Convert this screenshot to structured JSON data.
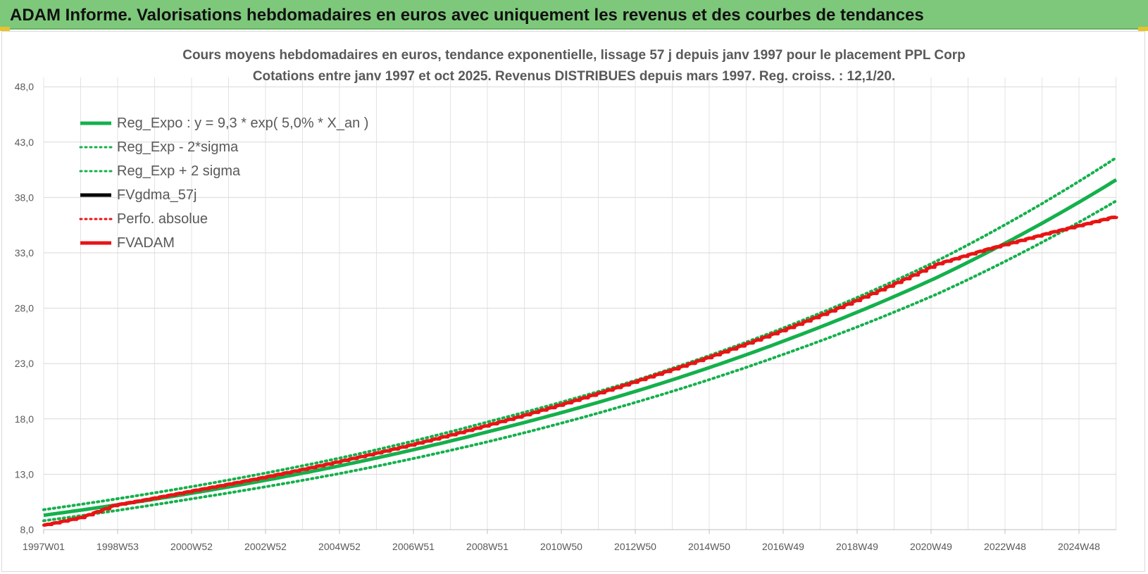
{
  "header": {
    "title": "ADAM Informe. Valorisations hebdomadaires en euros avec uniquement les revenus et des courbes de tendances"
  },
  "colors": {
    "banner": "#7dc87a",
    "green_series": "#14b04c",
    "red_series": "#e81414",
    "black_series": "#000000",
    "grid": "#d9d9d9"
  },
  "chart_data": {
    "type": "line",
    "title_line1": "Cours moyens hebdomadaires en euros, tendance exponentielle, lissage 57 j depuis janv 1997 pour le placement PPL Corp",
    "title_line2": "Cotations entre janv 1997 et oct 2025. Revenus DISTRIBUES depuis mars 1997. Reg. croiss. : 12,1/20.",
    "xlabel": "",
    "ylabel": "",
    "ylim": [
      8,
      49
    ],
    "y_ticks": [
      "8,0",
      "13,0",
      "18,0",
      "23,0",
      "28,0",
      "33,0",
      "38,0",
      "43,0",
      "48,0"
    ],
    "x_ticks": [
      "1997W01",
      "1998W53",
      "2000W52",
      "2002W52",
      "2004W52",
      "2006W51",
      "2008W51",
      "2010W50",
      "2012W50",
      "2014W50",
      "2016W49",
      "2018W49",
      "2020W49",
      "2022W48",
      "2024W48"
    ],
    "x_range_years": [
      1997.0,
      2025.8
    ],
    "grid": true,
    "legend_placement": "top-left",
    "series": [
      {
        "name": "Reg_Expo : y = 9,3 * exp( 5,0% *  X_an )",
        "style": "solid",
        "color": "#14b04c",
        "x": [
          1997,
          2001,
          2005,
          2009,
          2013,
          2017,
          2021,
          2025.8
        ],
        "values": [
          9.3,
          11.3,
          13.8,
          16.9,
          20.6,
          25.2,
          30.8,
          39.6
        ]
      },
      {
        "name": "Reg_Exp - 2*sigma",
        "style": "dotted",
        "color": "#14b04c",
        "x": [
          1997,
          2001,
          2005,
          2009,
          2013,
          2017,
          2021,
          2025.8
        ],
        "values": [
          8.8,
          10.8,
          13.1,
          16.0,
          19.6,
          24.0,
          29.3,
          37.7
        ]
      },
      {
        "name": "Reg_Exp + 2 sigma",
        "style": "dotted",
        "color": "#14b04c",
        "x": [
          1997,
          2001,
          2005,
          2009,
          2013,
          2017,
          2021,
          2025.8
        ],
        "values": [
          9.8,
          11.9,
          14.5,
          17.8,
          21.6,
          26.4,
          32.3,
          41.6
        ]
      },
      {
        "name": "FVgdma_57j",
        "style": "solid",
        "color": "#000000",
        "x": [],
        "values": []
      },
      {
        "name": "Perfo. absolue",
        "style": "dotted",
        "color": "#e81414",
        "x": [
          1997,
          1998,
          1998.9,
          2001,
          2005,
          2009,
          2013,
          2017,
          2021,
          2022.3,
          2024,
          2025.8
        ],
        "values": [
          8.4,
          9.1,
          10.2,
          11.5,
          14.2,
          17.5,
          21.5,
          26.2,
          32.0,
          33.3,
          34.8,
          36.3
        ]
      },
      {
        "name": "FVADAM",
        "style": "solid",
        "color": "#e81414",
        "x": [
          1997,
          1998,
          1998.9,
          2001,
          2005,
          2009,
          2013,
          2017,
          2021,
          2022.3,
          2024,
          2025.8
        ],
        "values": [
          8.4,
          9.1,
          10.2,
          11.5,
          14.2,
          17.5,
          21.5,
          26.2,
          32.0,
          33.3,
          34.8,
          36.3
        ]
      }
    ]
  }
}
